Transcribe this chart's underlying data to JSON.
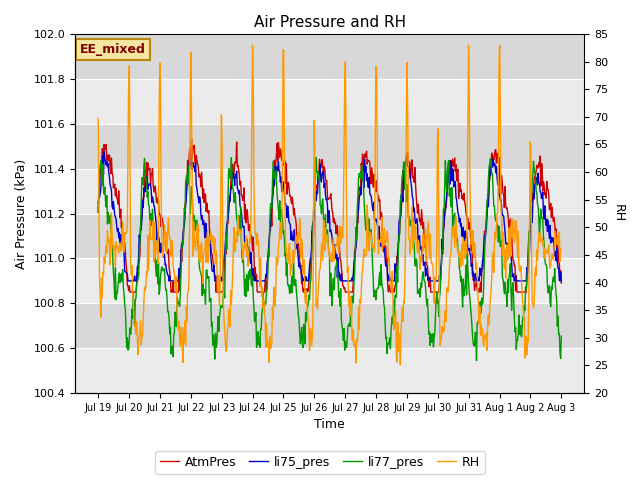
{
  "title": "Air Pressure and RH",
  "xlabel": "Time",
  "ylabel_left": "Air Pressure (kPa)",
  "ylabel_right": "RH",
  "ylim_left": [
    100.4,
    102.0
  ],
  "ylim_right": [
    20,
    85
  ],
  "yticks_left": [
    100.4,
    100.6,
    100.8,
    101.0,
    101.2,
    101.4,
    101.6,
    101.8,
    102.0
  ],
  "yticks_right": [
    20,
    25,
    30,
    35,
    40,
    45,
    50,
    55,
    60,
    65,
    70,
    75,
    80,
    85
  ],
  "annotation_text": "EE_mixed",
  "colors": {
    "AtmPres": "#cc0000",
    "li75_pres": "#0000cc",
    "li77_pres": "#009900",
    "RH": "#ff9900"
  },
  "legend_labels": [
    "AtmPres",
    "li75_pres",
    "li77_pres",
    "RH"
  ],
  "bg_light": "#ebebeb",
  "bg_dark": "#d8d8d8",
  "n_points": 700,
  "seed": 42
}
